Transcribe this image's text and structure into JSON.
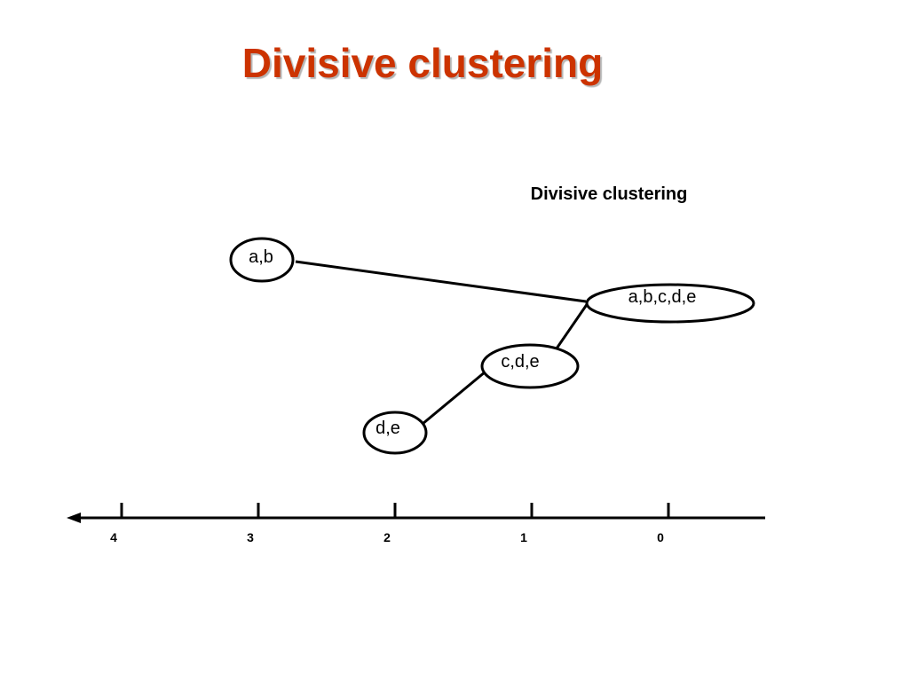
{
  "slide": {
    "title": "Divisive clustering",
    "subtitle": "Divisive clustering"
  },
  "nodes": {
    "root": "a,b,c,d,e",
    "ab": "a,b",
    "cde": "c,d,e",
    "de": "d,e"
  },
  "axis": {
    "ticks": [
      "4",
      "3",
      "2",
      "1",
      "0"
    ]
  },
  "colors": {
    "title": "#cc3300",
    "lines": "#000000"
  }
}
